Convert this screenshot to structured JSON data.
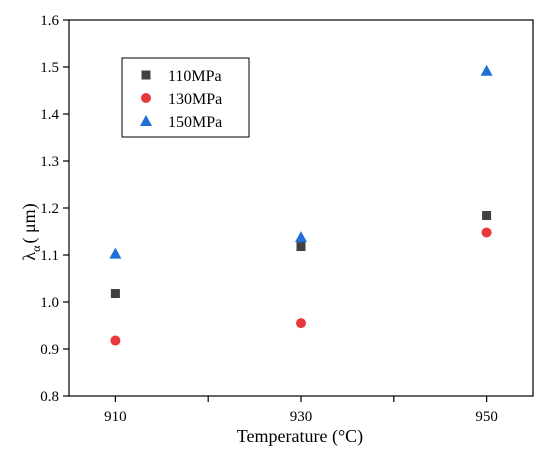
{
  "chart_data": {
    "type": "scatter",
    "title": "",
    "xlabel": "Temperature (°C)",
    "ylabel": {
      "main": "λ",
      "sub": "α",
      "unit": "( μm)"
    },
    "x": [
      910,
      930,
      950
    ],
    "xlim": [
      905,
      955
    ],
    "ylim": [
      0.8,
      1.6
    ],
    "xticks": [
      910,
      920,
      930,
      940,
      950
    ],
    "xtick_labels": [
      "910",
      "",
      "930",
      "",
      "950"
    ],
    "yticks": [
      0.8,
      0.9,
      1.0,
      1.1,
      1.2,
      1.3,
      1.4,
      1.5,
      1.6
    ],
    "ytick_labels": [
      "0.8",
      "0.9",
      "1.0",
      "1.1",
      "1.2",
      "1.3",
      "1.4",
      "1.5",
      "1.6"
    ],
    "grid": false,
    "legend_position": "top-left",
    "series": [
      {
        "name": "110MPa",
        "marker": "square",
        "color": "#404040",
        "values": [
          1.018,
          1.118,
          1.184
        ]
      },
      {
        "name": "130MPa",
        "marker": "circle",
        "color": "#e8383d",
        "values": [
          0.918,
          0.955,
          1.148
        ]
      },
      {
        "name": "150MPa",
        "marker": "triangle",
        "color": "#1f6fd9",
        "values": [
          1.103,
          1.138,
          1.492
        ]
      }
    ]
  }
}
